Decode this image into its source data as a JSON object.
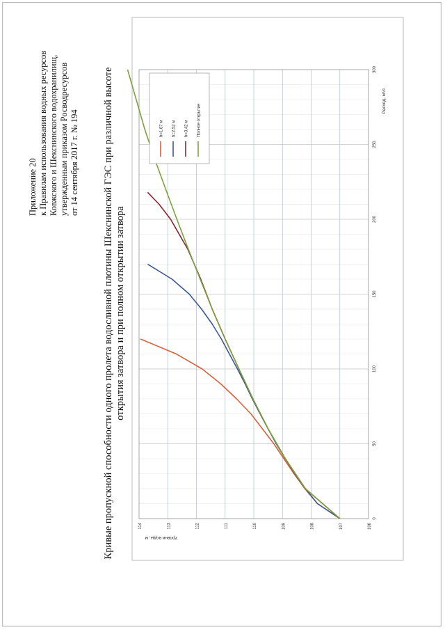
{
  "appendix": {
    "line1": "Приложение 20",
    "line2": "к Правилам использования водных ресурсов",
    "line3": "Ковжского и Шекснинского водохранилищ,",
    "line4": "утвержденным приказом Росводресурсов",
    "line5": "от 14 сентября 2017 г. № 194"
  },
  "title": {
    "line1": "Кривые пропускной способности одного пролета водосливной плотины Шекснинской ГЭС при различной высоте",
    "line2": "открытия затвора и при полном открытии затвора"
  },
  "chart_data": {
    "type": "line",
    "xlabel": "Расход, м³/с",
    "ylabel": "Уровни воды, м",
    "xlim": [
      0,
      300
    ],
    "ylim": [
      106,
      114
    ],
    "xticks": [
      0,
      50,
      100,
      150,
      200,
      250,
      300
    ],
    "yticks": [
      106,
      107,
      108,
      109,
      110,
      111,
      112,
      113,
      114
    ],
    "grid": true,
    "legend_position": "top-right",
    "series": [
      {
        "name": "h=1,67 м",
        "color": "#d9603b",
        "x": [
          0,
          10,
          20,
          30,
          40,
          50,
          60,
          70,
          80,
          90,
          100,
          110,
          120
        ],
        "y": [
          107,
          107.78,
          108.22,
          108.6,
          108.95,
          109.3,
          109.7,
          110.1,
          110.6,
          111.15,
          111.8,
          112.7,
          113.95
        ]
      },
      {
        "name": "h=2,52 м",
        "color": "#3b5896",
        "x": [
          0,
          10,
          20,
          30,
          40,
          50,
          60,
          70,
          80,
          90,
          100,
          110,
          120,
          130,
          140,
          150,
          160,
          170
        ],
        "y": [
          107,
          107.78,
          108.2,
          108.57,
          108.9,
          109.22,
          109.5,
          109.78,
          110.05,
          110.3,
          110.57,
          110.85,
          111.13,
          111.45,
          111.82,
          112.25,
          112.85,
          113.7
        ]
      },
      {
        "name": "h=3,42 м",
        "color": "#8b2332",
        "x": [
          0,
          20,
          40,
          60,
          80,
          100,
          120,
          140,
          160,
          180,
          200,
          210,
          218
        ],
        "y": [
          107,
          108.2,
          108.9,
          109.5,
          110.03,
          110.52,
          111.0,
          111.45,
          111.85,
          112.3,
          112.9,
          113.3,
          113.7
        ]
      },
      {
        "name": "Полное открытие",
        "color": "#79a33a",
        "x": [
          0,
          20,
          40,
          60,
          80,
          100,
          120,
          140,
          160,
          180,
          200,
          220,
          240,
          260,
          280,
          300
        ],
        "y": [
          107,
          108.2,
          108.9,
          109.5,
          110.03,
          110.52,
          111.0,
          111.45,
          111.87,
          112.28,
          112.68,
          113.07,
          113.45,
          113.8,
          114.1,
          114.4
        ]
      }
    ]
  }
}
